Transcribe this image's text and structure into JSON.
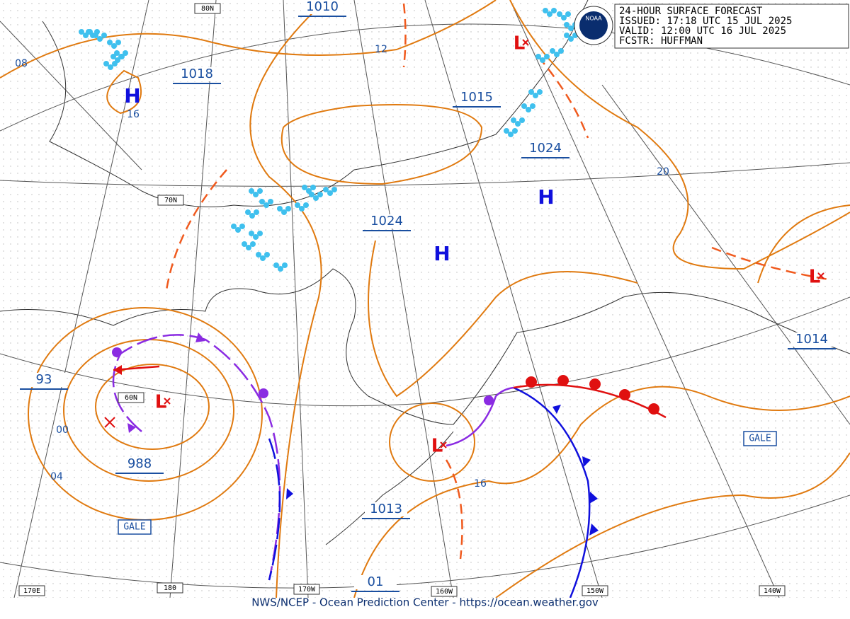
{
  "header": {
    "title": "24-HOUR SURFACE FORECAST",
    "issued": "ISSUED: 17:18 UTC 15 JUL 2025",
    "valid": "VALID:  12:00 UTC 16 JUL 2025",
    "forecaster": "FCSTR:  HUFFMAN",
    "logo": "NOAA"
  },
  "footer": "NWS/NCEP - Ocean Prediction Center - https://ocean.weather.gov",
  "grid_labels": [
    "80N",
    "70N",
    "60N",
    "170E",
    "180",
    "170W",
    "160W",
    "150W",
    "140W"
  ],
  "pressure_labels": [
    "1010",
    "1018",
    "1015",
    "1024",
    "1024",
    "988",
    "1013",
    "01",
    "1014",
    "93"
  ],
  "isobar_labels": [
    "08",
    "12",
    "16",
    "20",
    "00",
    "04",
    "16"
  ],
  "centers": [
    "H",
    "H",
    "H",
    "L",
    "L",
    "L",
    "L"
  ],
  "warnings": [
    "GALE",
    "GALE"
  ]
}
